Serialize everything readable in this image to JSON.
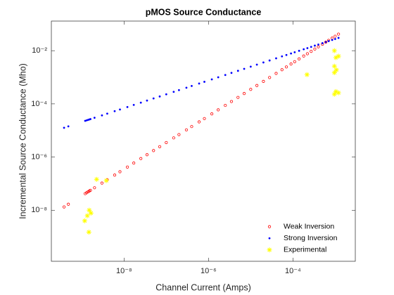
{
  "chart_data": {
    "type": "scatter",
    "title": "pMOS Source Conductance",
    "xlabel": "Channel Current (Amps)",
    "ylabel": "Incremental Source Conductance (Mho)",
    "xscale": "log",
    "yscale": "log",
    "xlim": [
      1.9e-10,
      0.003
    ],
    "ylim": [
      1.2e-10,
      0.13
    ],
    "xticks": [
      {
        "value": 1e-08,
        "label": "10⁻⁸"
      },
      {
        "value": 1e-06,
        "label": "10⁻⁶"
      },
      {
        "value": 0.0001,
        "label": "10⁻⁴"
      }
    ],
    "yticks": [
      {
        "value": 1e-08,
        "label": "10⁻⁸"
      },
      {
        "value": 1e-06,
        "label": "10⁻⁶"
      },
      {
        "value": 0.0001,
        "label": "10⁻⁴"
      },
      {
        "value": 0.01,
        "label": "10⁻²"
      }
    ],
    "grid": false,
    "legend": "southeast",
    "series": [
      {
        "name": "Weak Inversion",
        "color": "#ff0000",
        "marker": "o",
        "x": [
          3.8e-10,
          4.8e-10,
          1.2e-09,
          1.3e-09,
          1.4e-09,
          1.5e-09,
          1.6e-09,
          2e-09,
          3e-09,
          4e-09,
          6e-09,
          8e-09,
          1.2e-08,
          1.7e-08,
          2.5e-08,
          3.5e-08,
          5e-08,
          7e-08,
          1e-07,
          1.5e-07,
          2e-07,
          3e-07,
          4e-07,
          6e-07,
          8e-07,
          1.2e-06,
          1.7e-06,
          2.5e-06,
          3.5e-06,
          5e-06,
          7e-06,
          1e-05,
          1.4e-05,
          2e-05,
          2.8e-05,
          4e-05,
          5.5e-05,
          7e-05,
          9e-05,
          0.00011,
          0.00014,
          0.00018,
          0.00022,
          0.00027,
          0.00033,
          0.0004,
          0.0005,
          0.0006,
          0.0007,
          0.00085,
          0.001,
          0.0012
        ],
        "values": [
          1.33e-08,
          1.68e-08,
          4.2e-08,
          4.55e-08,
          4.9e-08,
          5.25e-08,
          5.6e-08,
          7e-08,
          1.05e-07,
          1.4e-07,
          2.1e-07,
          2.8e-07,
          4.2e-07,
          5.95e-07,
          8.75e-07,
          1.225e-06,
          1.75e-06,
          2.45e-06,
          3.5e-06,
          5.25e-06,
          7e-06,
          1.05e-05,
          1.4e-05,
          2.1e-05,
          2.8e-05,
          4.2e-05,
          5.95e-05,
          8.75e-05,
          0.0001225,
          0.000175,
          0.000245,
          0.00035,
          0.00049,
          0.0007,
          0.00098,
          0.0014,
          0.001925,
          0.00245,
          0.00315,
          0.00385,
          0.0049,
          0.0063,
          0.0077,
          0.00945,
          0.01155,
          0.014,
          0.0175,
          0.021,
          0.0245,
          0.02975,
          0.035,
          0.042
        ]
      },
      {
        "name": "Strong Inversion",
        "color": "#0000ff",
        "marker": ".",
        "x": [
          3.8e-10,
          4.8e-10,
          1.2e-09,
          1.3e-09,
          1.4e-09,
          1.5e-09,
          1.6e-09,
          2e-09,
          3e-09,
          4e-09,
          6e-09,
          8e-09,
          1.2e-08,
          1.7e-08,
          2.5e-08,
          3.5e-08,
          5e-08,
          7e-08,
          1e-07,
          1.5e-07,
          2e-07,
          3e-07,
          4e-07,
          6e-07,
          8e-07,
          1.2e-06,
          1.7e-06,
          2.5e-06,
          3.5e-06,
          5e-06,
          7e-06,
          1e-05,
          1.4e-05,
          2e-05,
          2.8e-05,
          4e-05,
          5.5e-05,
          7e-05,
          9e-05,
          0.00011,
          0.00014,
          0.00018,
          0.00022,
          0.00027,
          0.00033,
          0.0004,
          0.0005,
          0.0006,
          0.0007,
          0.00085,
          0.001,
          0.0012
        ],
        "values": [
          1.26e-05,
          1.43e-05,
          2.3e-05,
          2.39e-05,
          2.49e-05,
          2.58e-05,
          2.67e-05,
          3e-05,
          3.7e-05,
          4.3e-05,
          5.31e-05,
          6.16e-05,
          7.6e-05,
          9.12e-05,
          0.000111,
          0.000133,
          0.00016,
          0.00019,
          0.000229,
          0.000283,
          0.000329,
          0.000406,
          0.000471,
          0.000582,
          0.000676,
          0.000834,
          0.001,
          0.00122,
          0.00146,
          0.00175,
          0.00208,
          0.00251,
          0.00299,
          0.00361,
          0.00429,
          0.00516,
          0.0061,
          0.0069,
          0.00787,
          0.00873,
          0.00991,
          0.0113,
          0.0125,
          0.0139,
          0.0155,
          0.0171,
          0.0192,
          0.0211,
          0.0229,
          0.0253,
          0.0275,
          0.0303
        ]
      },
      {
        "name": "Experimental",
        "color": "#ffff00",
        "marker": "*",
        "x": [
          1.17e-09,
          1.35e-09,
          1.5e-09,
          1.65e-09,
          1.47e-09,
          2.24e-09,
          3.8e-09,
          0.000215,
          0.00096,
          0.0012,
          0.00104,
          0.00096,
          0.00107,
          0.00096,
          0.00104,
          0.0012,
          0.00096
        ],
        "values": [
          4e-09,
          6.2e-09,
          1e-08,
          7.8e-09,
          1.5e-09,
          1.45e-07,
          1.3e-07,
          0.00126,
          0.01,
          0.0062,
          0.0055,
          0.0026,
          0.0019,
          0.0015,
          0.00029,
          0.00026,
          0.00023
        ]
      }
    ]
  }
}
